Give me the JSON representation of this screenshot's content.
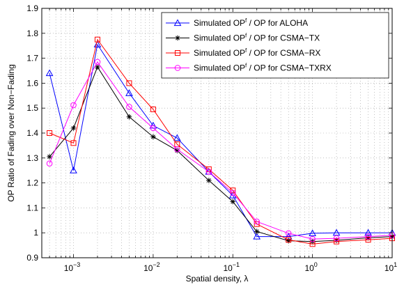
{
  "chart_data": {
    "type": "line",
    "xlabel": "Spatial density, λ",
    "ylabel": "OP Ratio of Fading over Non−Fading",
    "xscale": "log",
    "xlim": [
      0.0004,
      10
    ],
    "ylim": [
      0.9,
      1.9
    ],
    "grid": true,
    "legend_position": "top-right",
    "x": [
      0.0005,
      0.001,
      0.002,
      0.005,
      0.01,
      0.02,
      0.05,
      0.1,
      0.2,
      0.5,
      1,
      2,
      5,
      10
    ],
    "x_ticks": [
      {
        "value": 0.001,
        "base": "10",
        "exp": "−3"
      },
      {
        "value": 0.01,
        "base": "10",
        "exp": "−2"
      },
      {
        "value": 0.1,
        "base": "10",
        "exp": "−1"
      },
      {
        "value": 1,
        "base": "10",
        "exp": "0"
      },
      {
        "value": 10,
        "base": "10",
        "exp": "1"
      }
    ],
    "y_ticks": [
      {
        "value": 0.9,
        "label": "0.9"
      },
      {
        "value": 1.0,
        "label": "1"
      },
      {
        "value": 1.1,
        "label": "1.1"
      },
      {
        "value": 1.2,
        "label": "1.2"
      },
      {
        "value": 1.3,
        "label": "1.3"
      },
      {
        "value": 1.4,
        "label": "1.4"
      },
      {
        "value": 1.5,
        "label": "1.5"
      },
      {
        "value": 1.6,
        "label": "1.6"
      },
      {
        "value": 1.7,
        "label": "1.7"
      },
      {
        "value": 1.8,
        "label": "1.8"
      },
      {
        "value": 1.9,
        "label": "1.9"
      }
    ],
    "series": [
      {
        "name_pre": "Simulated OP",
        "name_sup": "f",
        "name_post": " / OP for ALOHA",
        "color": "#0000ff",
        "marker": "triangle",
        "values": [
          1.64,
          1.25,
          1.755,
          1.56,
          1.43,
          1.38,
          1.245,
          1.15,
          0.985,
          0.985,
          0.998,
          1.0,
          1.0,
          1.0
        ]
      },
      {
        "name_pre": "Simulated OP",
        "name_sup": "f",
        "name_post": " / OP for CSMA−TX",
        "color": "#000000",
        "marker": "star",
        "values": [
          1.305,
          1.42,
          1.665,
          1.465,
          1.385,
          1.33,
          1.21,
          1.125,
          1.005,
          0.968,
          0.965,
          0.97,
          0.98,
          0.985
        ]
      },
      {
        "name_pre": "Simulated OP",
        "name_sup": "f",
        "name_post": " / OP for CSMA−RX",
        "color": "#ff0000",
        "marker": "square",
        "values": [
          1.4,
          1.36,
          1.775,
          1.6,
          1.495,
          1.355,
          1.255,
          1.17,
          1.035,
          0.972,
          0.955,
          0.965,
          0.972,
          0.978
        ]
      },
      {
        "name_pre": "Simulated OP",
        "name_sup": "f",
        "name_post": " / OP for CSMA−TXRX",
        "color": "#ff00ff",
        "marker": "circle",
        "values": [
          1.278,
          1.512,
          1.685,
          1.505,
          1.42,
          1.335,
          1.245,
          1.16,
          1.045,
          0.998,
          0.975,
          0.978,
          0.985,
          0.99
        ]
      }
    ]
  }
}
